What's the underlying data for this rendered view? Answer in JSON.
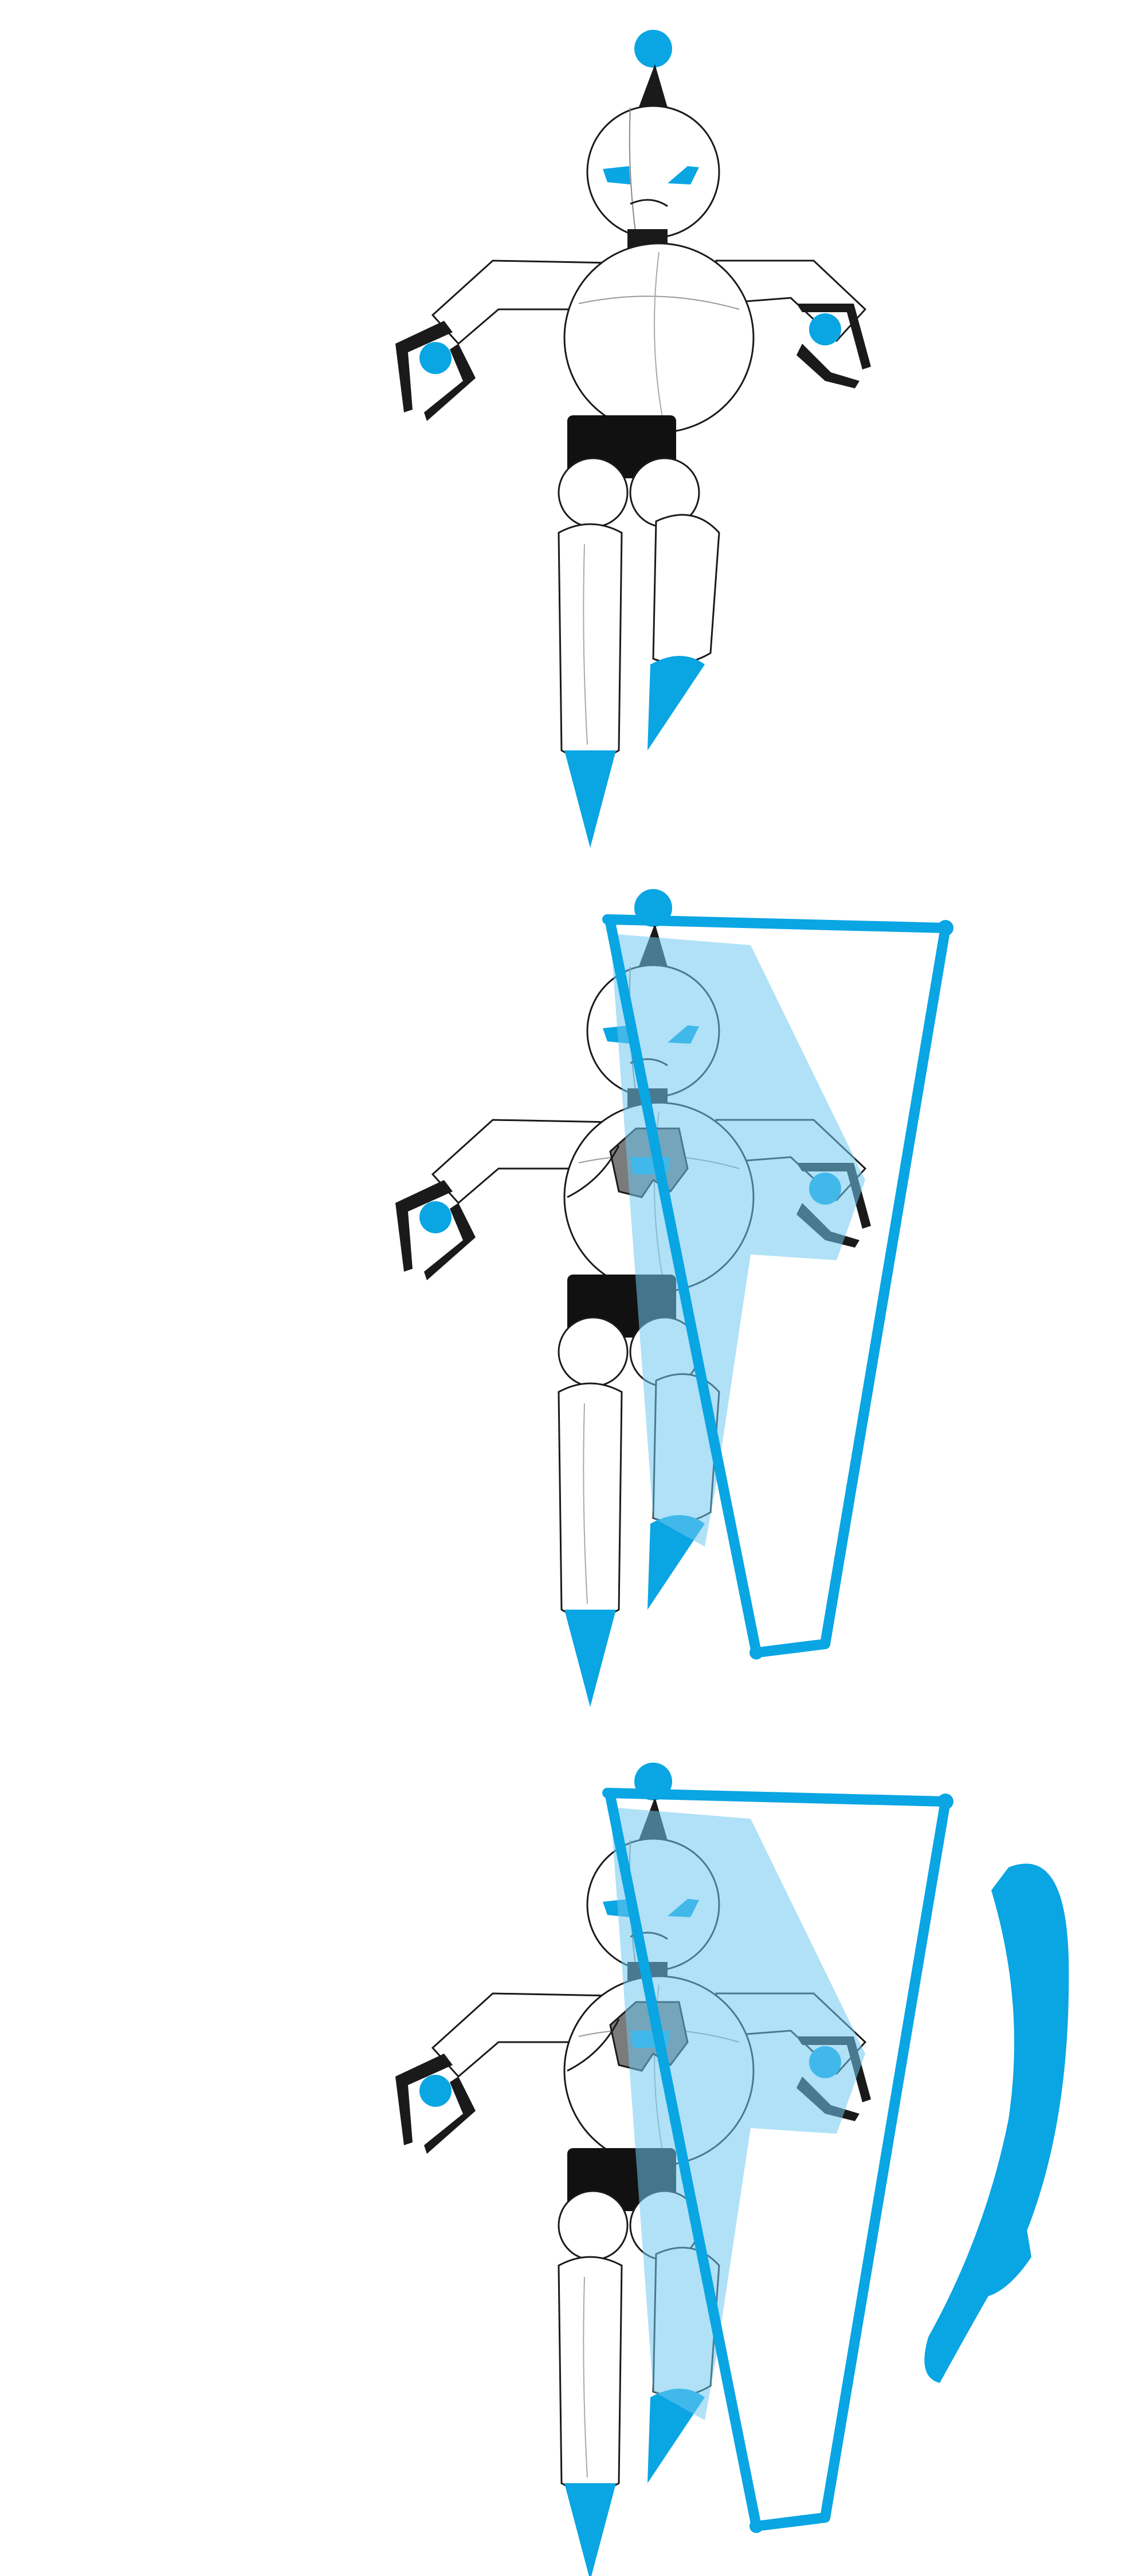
{
  "sequence": {
    "panels": [
      {
        "state": "robot-idle",
        "effects": []
      },
      {
        "state": "robot-with-chest-core",
        "effects": [
          "light-beam-outline",
          "translucent-blue-overlay"
        ]
      },
      {
        "state": "robot-with-chest-core",
        "effects": [
          "light-beam-outline",
          "translucent-blue-overlay",
          "blue-brush-stroke"
        ]
      }
    ]
  },
  "colors": {
    "accent_blue": "#0aa5e3",
    "overlay_blue": "#6fc8f0",
    "dark_blue": "#0b5a78",
    "outline": "#1a1a1a",
    "body_white": "#ffffff",
    "core_gray": "#7b7b7b"
  }
}
